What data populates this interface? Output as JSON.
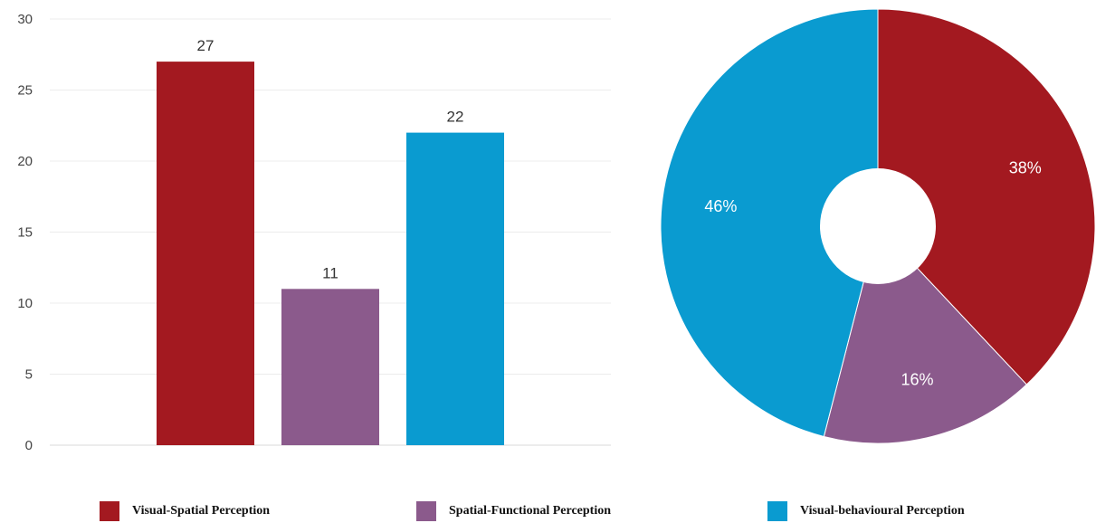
{
  "chart_data": [
    {
      "type": "bar",
      "categories": [
        "Visual-Spatial Perception",
        "Spatial-Functional Perception",
        "Visual-behavioural Perception"
      ],
      "values": [
        27,
        11,
        22
      ],
      "data_labels": [
        "27",
        "11",
        "22"
      ],
      "colors": [
        "#a31920",
        "#8b5a8c",
        "#0a9bd0"
      ],
      "ylim": [
        0,
        30
      ],
      "yticks": [
        "0",
        "5",
        "10",
        "15",
        "20",
        "25",
        "30"
      ],
      "grid": true,
      "title": "",
      "xlabel": "",
      "ylabel": ""
    },
    {
      "type": "pie",
      "donut": true,
      "categories": [
        "Visual-Spatial Perception",
        "Spatial-Functional Perception",
        "Visual-behavioural Perception"
      ],
      "values": [
        38,
        16,
        46
      ],
      "data_labels": [
        "38%",
        "16%",
        "46%"
      ],
      "colors": [
        "#a31920",
        "#8b5a8c",
        "#0a9bd0"
      ]
    }
  ],
  "legend": {
    "placement": "bottom",
    "items": [
      {
        "label": "Visual-Spatial Perception",
        "color": "#a31920"
      },
      {
        "label": "Spatial-Functional Perception",
        "color": "#8b5a8c"
      },
      {
        "label": "Visual-behavioural Perception",
        "color": "#0a9bd0"
      }
    ]
  }
}
